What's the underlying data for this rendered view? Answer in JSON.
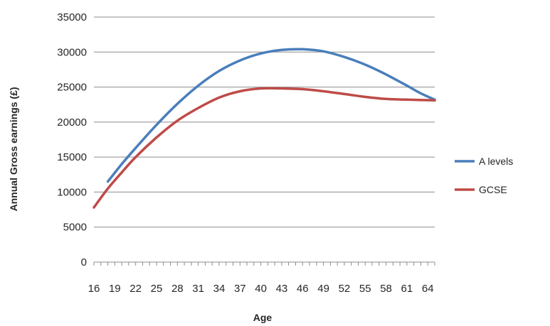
{
  "chart_data": {
    "type": "line",
    "xlabel": "Age",
    "ylabel": "Annual Gross earnings (£)",
    "x_tick_labels": [
      "16",
      "19",
      "22",
      "25",
      "28",
      "31",
      "34",
      "37",
      "40",
      "43",
      "46",
      "49",
      "52",
      "55",
      "58",
      "61",
      "64"
    ],
    "y_tick_labels": [
      "0",
      "5000",
      "10000",
      "15000",
      "20000",
      "25000",
      "30000",
      "35000"
    ],
    "xlim": [
      16,
      65
    ],
    "ylim": [
      0,
      35000
    ],
    "grid": "horizontal",
    "legend_position": "right",
    "series": [
      {
        "name": "A levels",
        "color": "#4a7ebb",
        "x": [
          18,
          20,
          22,
          25,
          28,
          31,
          34,
          37,
          40,
          43,
          46,
          49,
          52,
          55,
          58,
          61,
          63,
          65
        ],
        "y": [
          11500,
          14000,
          16300,
          19600,
          22600,
          25200,
          27300,
          28800,
          29800,
          30300,
          30400,
          30100,
          29300,
          28200,
          26800,
          25200,
          24100,
          23200
        ]
      },
      {
        "name": "GCSE",
        "color": "#be4b48",
        "x": [
          16,
          18,
          20,
          22,
          25,
          28,
          31,
          34,
          37,
          40,
          43,
          46,
          49,
          52,
          55,
          58,
          61,
          65
        ],
        "y": [
          7800,
          10500,
          12800,
          15000,
          17800,
          20200,
          22000,
          23500,
          24400,
          24800,
          24800,
          24700,
          24400,
          24000,
          23600,
          23300,
          23200,
          23100
        ]
      }
    ]
  }
}
